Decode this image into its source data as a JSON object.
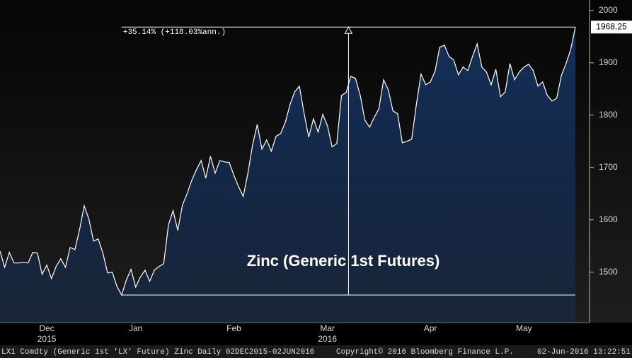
{
  "chart_data": {
    "type": "area",
    "title": "Zinc (Generic 1st Futures)",
    "annotation": "+35.14% (+118.03%ann.)",
    "footer_left": "LX1 Comdty (Generic 1st 'LX' Future) Zinc  Daily 02DEC2015-02JUN2016",
    "footer_center": "Copyright© 2016 Bloomberg Finance L.P.",
    "footer_right": "02-Jun-2016 13:22:51",
    "categories": [
      null,
      null,
      null,
      null,
      null,
      null,
      null,
      null,
      null,
      null,
      "Dec",
      null,
      null,
      null,
      null,
      null,
      null,
      null,
      null,
      null,
      null,
      null,
      null,
      null,
      null,
      null,
      null,
      null,
      null,
      "Jan",
      null,
      null,
      null,
      null,
      null,
      null,
      null,
      null,
      null,
      null,
      null,
      null,
      null,
      null,
      null,
      null,
      null,
      null,
      null,
      null,
      "Feb",
      null,
      null,
      null,
      null,
      null,
      null,
      null,
      null,
      null,
      null,
      null,
      null,
      null,
      null,
      null,
      null,
      null,
      null,
      null,
      "Mar",
      null,
      null,
      null,
      null,
      null,
      null,
      null,
      null,
      null,
      null,
      null,
      null,
      null,
      null,
      null,
      null,
      null,
      null,
      null,
      null,
      null,
      "Apr",
      null,
      null,
      null,
      null,
      null,
      null,
      null,
      null,
      null,
      null,
      null,
      null,
      null,
      null,
      null,
      null,
      null,
      null,
      null,
      "May",
      null,
      null,
      null,
      null,
      null,
      null,
      null,
      null,
      null,
      null,
      null
    ],
    "x_year_labels": [
      null,
      null,
      null,
      null,
      null,
      null,
      null,
      null,
      null,
      null,
      "2015",
      null,
      null,
      null,
      null,
      null,
      null,
      null,
      null,
      null,
      null,
      null,
      null,
      null,
      null,
      null,
      null,
      null,
      null,
      null,
      null,
      null,
      null,
      null,
      null,
      null,
      null,
      null,
      null,
      null,
      null,
      null,
      null,
      null,
      null,
      null,
      null,
      null,
      null,
      null,
      null,
      null,
      null,
      null,
      null,
      null,
      null,
      null,
      null,
      null,
      null,
      null,
      null,
      null,
      null,
      null,
      null,
      null,
      null,
      null,
      "2016",
      null,
      null,
      null,
      null,
      null,
      null,
      null,
      null,
      null,
      null,
      null,
      null,
      null,
      null,
      null,
      null,
      null,
      null,
      null,
      null,
      null,
      null,
      null,
      null,
      null,
      null,
      null,
      null,
      null,
      null,
      null,
      null,
      null,
      null,
      null,
      null,
      null,
      null,
      null,
      null,
      null,
      null,
      null,
      null,
      null,
      null,
      null,
      null,
      null,
      null,
      null,
      null
    ],
    "values": [
      1540.5,
      1509.4,
      1537.8,
      1517.6,
      1517.6,
      1518.9,
      1517.6,
      1537.8,
      1536.5,
      1495.9,
      1513.5,
      1487.8,
      1510.8,
      1525.7,
      1509.4,
      1547.3,
      1543.2,
      1581.1,
      1627,
      1601.4,
      1559.4,
      1563.5,
      1536.5,
      1498.6,
      1500,
      1473,
      1456.4,
      1485.1,
      1505.4,
      1471.6,
      1490.5,
      1504,
      1482.4,
      1504,
      1510.8,
      1516.2,
      1590.5,
      1617.6,
      1579.7,
      1628.4,
      1650,
      1675.7,
      1695.9,
      1713.5,
      1679.7,
      1721.6,
      1689.2,
      1713.5,
      1710.8,
      1709.5,
      1685.1,
      1663.5,
      1644.6,
      1689.2,
      1743.2,
      1782.4,
      1735.1,
      1752.7,
      1731.1,
      1759.5,
      1764.9,
      1786.5,
      1820.3,
      1844.6,
      1855.4,
      1804.1,
      1758.1,
      1793.2,
      1767.6,
      1801.4,
      1779.7,
      1739.2,
      1745.9,
      1837.8,
      1843.2,
      1874.3,
      1870.3,
      1837.8,
      1790.5,
      1777,
      1795.9,
      1812.2,
      1867.6,
      1848.6,
      1808.1,
      1802.7,
      1747.3,
      1750,
      1754.1,
      1820.3,
      1878.4,
      1858.1,
      1863.5,
      1883.8,
      1929.7,
      1933.8,
      1912.2,
      1905.4,
      1877,
      1891.9,
      1885.1,
      1912.2,
      1936.5,
      1891.9,
      1882.4,
      1858.1,
      1887.8,
      1835.1,
      1844.6,
      1898.6,
      1867.6,
      1882.4,
      1891.9,
      1897.3,
      1885.1,
      1855.4,
      1863.5,
      1837.8,
      1827,
      1832.4,
      1875.7,
      1898.6,
      1925.7,
      1968.25
    ],
    "line_color": "#ffffff",
    "fill_color": "#15305a",
    "ylim": [
      1405,
      2020
    ],
    "yticks": [
      1500,
      1600,
      1700,
      1800,
      1900,
      2000
    ]
  }
}
